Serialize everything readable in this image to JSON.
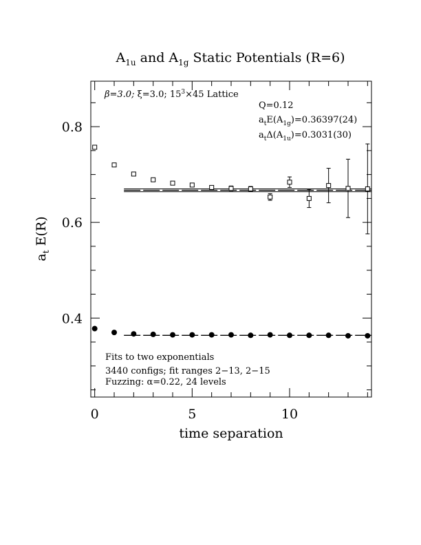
{
  "chart_data": {
    "type": "scatter",
    "title_parts": {
      "a_base": "A",
      "a_sub": "1u",
      "mid": " and ",
      "b_base": "A",
      "b_sub": "1g",
      "tail": " Static Potentials (R=6)"
    },
    "xlabel": "time separation",
    "ylabel": {
      "base": "a",
      "sub": "t",
      "rest": " E(R)"
    },
    "xlim": [
      -0.2,
      14.2
    ],
    "ylim": [
      0.235,
      0.895
    ],
    "x_ticks": [
      {
        "v": 0,
        "label": "0"
      },
      {
        "v": 5,
        "label": "5"
      },
      {
        "v": 10,
        "label": "10"
      }
    ],
    "y_ticks": [
      {
        "v": 0.4,
        "label": "0.4"
      },
      {
        "v": 0.6,
        "label": "0.6"
      },
      {
        "v": 0.8,
        "label": "0.8"
      }
    ],
    "annotations": {
      "lattice": {
        "beta": "β=3.0; ",
        "xi": "ξ=3.0; ",
        "size_base": "15",
        "size_exp": "3",
        "size_rest": "×45 Lattice"
      },
      "q": "Q=0.12",
      "energy": {
        "prefix": "a",
        "prefix_sub": "t",
        "mid": "E(A",
        "state_sub": "1g",
        "value": ")=0.36397(24)"
      },
      "gap": {
        "prefix": "a",
        "prefix_sub": "t",
        "mid": "Δ(A",
        "state_sub": "1u",
        "value": ")=0.3031(30)"
      },
      "fits": "Fits to two exponentials",
      "configs": "3440 configs; fit ranges 2−13, 2−15",
      "fuzzing": "Fuzzing: α=0.22, 24 levels"
    },
    "series": [
      {
        "name": "A1g",
        "marker": "filled-circle",
        "points": [
          {
            "x": 0,
            "y": 0.378,
            "err": 0
          },
          {
            "x": 1,
            "y": 0.37,
            "err": 0
          },
          {
            "x": 2,
            "y": 0.367,
            "err": 0
          },
          {
            "x": 3,
            "y": 0.366,
            "err": 0
          },
          {
            "x": 4,
            "y": 0.365,
            "err": 0
          },
          {
            "x": 5,
            "y": 0.365,
            "err": 0
          },
          {
            "x": 6,
            "y": 0.365,
            "err": 0
          },
          {
            "x": 7,
            "y": 0.365,
            "err": 0
          },
          {
            "x": 8,
            "y": 0.364,
            "err": 0
          },
          {
            "x": 9,
            "y": 0.365,
            "err": 0
          },
          {
            "x": 10,
            "y": 0.364,
            "err": 0
          },
          {
            "x": 11,
            "y": 0.364,
            "err": 0
          },
          {
            "x": 12,
            "y": 0.364,
            "err": 0
          },
          {
            "x": 13,
            "y": 0.363,
            "err": 0
          },
          {
            "x": 14,
            "y": 0.363,
            "err": 0
          }
        ],
        "fit_value": 0.36397,
        "fit_range": [
          1.5,
          14.2
        ]
      },
      {
        "name": "A1u",
        "marker": "open-square",
        "points": [
          {
            "x": 0,
            "y": 0.757,
            "err": 0.004
          },
          {
            "x": 1,
            "y": 0.72,
            "err": 0.003
          },
          {
            "x": 2,
            "y": 0.701,
            "err": 0.003
          },
          {
            "x": 3,
            "y": 0.689,
            "err": 0.003
          },
          {
            "x": 4,
            "y": 0.682,
            "err": 0.003
          },
          {
            "x": 5,
            "y": 0.678,
            "err": 0.003
          },
          {
            "x": 6,
            "y": 0.673,
            "err": 0.004
          },
          {
            "x": 7,
            "y": 0.671,
            "err": 0.005
          },
          {
            "x": 8,
            "y": 0.67,
            "err": 0.005
          },
          {
            "x": 9,
            "y": 0.653,
            "err": 0.007
          },
          {
            "x": 10,
            "y": 0.684,
            "err": 0.011
          },
          {
            "x": 11,
            "y": 0.65,
            "err": 0.019
          },
          {
            "x": 12,
            "y": 0.677,
            "err": 0.036
          },
          {
            "x": 13,
            "y": 0.671,
            "err": 0.061
          },
          {
            "x": 14,
            "y": 0.67,
            "err": 0.094
          }
        ],
        "fit_value": 0.667,
        "fit_band": [
          0.664,
          0.67
        ],
        "fit_range": [
          1.5,
          14.2
        ]
      }
    ]
  }
}
